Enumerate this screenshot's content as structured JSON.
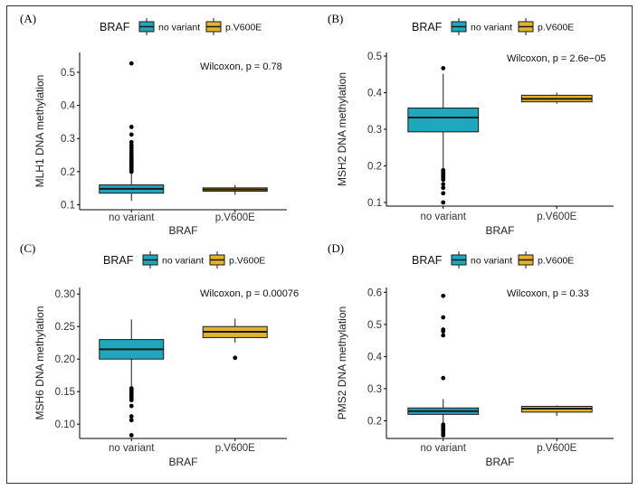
{
  "figure": {
    "background": "#ffffff",
    "colors": {
      "no_variant": "#1fa8bd",
      "p_V600E": "#e3b22a",
      "outline": "#1a1a1a",
      "outlier": "#000000"
    }
  },
  "chart_data": [
    {
      "panel_label": "(A)",
      "type": "box",
      "legend": {
        "title": "BRAF",
        "entries": [
          "no variant",
          "p.V600E"
        ]
      },
      "xlabel": "BRAF",
      "ylabel": "MLH1 DNA methylation",
      "categories": [
        "no variant",
        "p.V600E"
      ],
      "ylim": [
        0.085,
        0.56
      ],
      "yticks": [
        0.1,
        0.2,
        0.3,
        0.4,
        0.5
      ],
      "ytick_labels": [
        "0.1",
        "0.2",
        "0.3",
        "0.4",
        "0.5"
      ],
      "annotation": "Wilcoxon, p = 0.78",
      "boxes": [
        {
          "category": "no variant",
          "whisker_low": 0.112,
          "q1": 0.135,
          "median": 0.148,
          "q3": 0.16,
          "whisker_high": 0.196,
          "outliers": [
            0.2,
            0.204,
            0.208,
            0.212,
            0.216,
            0.22,
            0.224,
            0.228,
            0.233,
            0.238,
            0.243,
            0.249,
            0.256,
            0.264,
            0.272,
            0.28,
            0.289,
            0.312,
            0.335,
            0.527
          ]
        },
        {
          "category": "p.V600E",
          "whisker_low": 0.13,
          "q1": 0.141,
          "median": 0.146,
          "q3": 0.151,
          "whisker_high": 0.16,
          "outliers": []
        }
      ]
    },
    {
      "panel_label": "(B)",
      "type": "box",
      "legend": {
        "title": "BRAF",
        "entries": [
          "no variant",
          "p.V600E"
        ]
      },
      "xlabel": "BRAF",
      "ylabel": "MSH2 DNA methylation",
      "categories": [
        "no variant",
        "p.V600E"
      ],
      "ylim": [
        0.09,
        0.51
      ],
      "yticks": [
        0.1,
        0.2,
        0.3,
        0.4,
        0.5
      ],
      "ytick_labels": [
        "0.1",
        "0.2",
        "0.3",
        "0.4",
        "0.5"
      ],
      "annotation": "Wilcoxon, p = 2.6e−05",
      "boxes": [
        {
          "category": "no variant",
          "whisker_low": 0.19,
          "q1": 0.293,
          "median": 0.332,
          "q3": 0.358,
          "whisker_high": 0.452,
          "outliers": [
            0.188,
            0.184,
            0.18,
            0.176,
            0.172,
            0.168,
            0.162,
            0.15,
            0.14,
            0.125,
            0.1,
            0.467
          ]
        },
        {
          "category": "p.V600E",
          "whisker_low": 0.37,
          "q1": 0.375,
          "median": 0.383,
          "q3": 0.393,
          "whisker_high": 0.4,
          "outliers": []
        }
      ]
    },
    {
      "panel_label": "(C)",
      "type": "box",
      "legend": {
        "title": "BRAF",
        "entries": [
          "no variant",
          "p.V600E"
        ]
      },
      "xlabel": "BRAF",
      "ylabel": "MSH6 DNA methylation",
      "categories": [
        "no variant",
        "p.V600E"
      ],
      "ylim": [
        0.078,
        0.31
      ],
      "yticks": [
        0.1,
        0.15,
        0.2,
        0.25,
        0.3
      ],
      "ytick_labels": [
        "0.10",
        "0.15",
        "0.20",
        "0.25",
        "0.30"
      ],
      "annotation": "Wilcoxon, p = 0.00076",
      "boxes": [
        {
          "category": "no variant",
          "whisker_low": 0.157,
          "q1": 0.2,
          "median": 0.215,
          "q3": 0.23,
          "whisker_high": 0.261,
          "outliers": [
            0.155,
            0.152,
            0.149,
            0.146,
            0.143,
            0.14,
            0.137,
            0.128,
            0.112,
            0.106,
            0.083
          ]
        },
        {
          "category": "p.V600E",
          "whisker_low": 0.225,
          "q1": 0.233,
          "median": 0.242,
          "q3": 0.25,
          "whisker_high": 0.262,
          "outliers": [
            0.202
          ]
        }
      ]
    },
    {
      "panel_label": "(D)",
      "type": "box",
      "legend": {
        "title": "BRAF",
        "entries": [
          "no variant",
          "p.V600E"
        ]
      },
      "xlabel": "BRAF",
      "ylabel": "PMS2 DNA methylation",
      "categories": [
        "no variant",
        "p.V600E"
      ],
      "ylim": [
        0.145,
        0.615
      ],
      "yticks": [
        0.2,
        0.3,
        0.4,
        0.5,
        0.6
      ],
      "ytick_labels": [
        "0.2",
        "0.3",
        "0.4",
        "0.5",
        "0.6"
      ],
      "annotation": "Wilcoxon, p = 0.33",
      "boxes": [
        {
          "category": "no variant",
          "whisker_low": 0.19,
          "q1": 0.22,
          "median": 0.23,
          "q3": 0.24,
          "whisker_high": 0.268,
          "outliers": [
            0.188,
            0.182,
            0.176,
            0.17,
            0.162,
            0.155,
            0.333,
            0.466,
            0.479,
            0.484,
            0.522,
            0.589
          ]
        },
        {
          "category": "p.V600E",
          "whisker_low": 0.215,
          "q1": 0.227,
          "median": 0.238,
          "q3": 0.245,
          "whisker_high": 0.248,
          "outliers": []
        }
      ]
    }
  ]
}
